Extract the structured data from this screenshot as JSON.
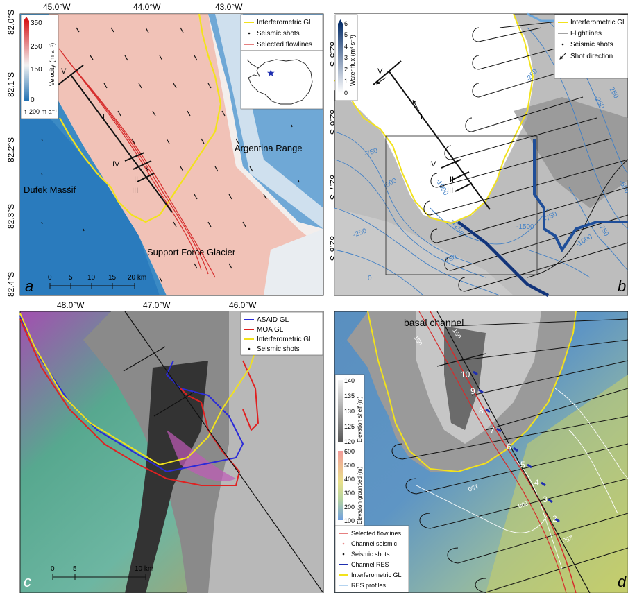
{
  "panel_a": {
    "letter": "a",
    "top_ticks": [
      "45.0°W",
      "44.0°W",
      "43.0°W"
    ],
    "left_ticks": [
      "82.0°S",
      "82.1°S",
      "82.2°S",
      "82.3°S",
      "82.4°S"
    ],
    "right_ticks": [
      "82.5°S",
      "82.6°S",
      "82.7°S",
      "82.8°S"
    ],
    "colorbar": {
      "label": "Velocity (m a⁻¹)",
      "ticks": [
        "350",
        "250",
        "150",
        "0"
      ],
      "arrow_label": "200 m a⁻¹"
    },
    "legend": [
      "Interferometric GL",
      "Seismic shots",
      "Selected flowlines"
    ],
    "places": [
      "Argentina Range",
      "Dufek Massif",
      "Support Force Glacier"
    ],
    "line_labels": [
      "V",
      "I",
      "IV",
      "II",
      "III"
    ],
    "scalebar": {
      "ticks": [
        "0",
        "5",
        "10",
        "15",
        "20 km"
      ]
    },
    "colors": {
      "high": "#e0493a",
      "mid": "#f3efec",
      "low": "#2878b8",
      "gl": "#f2e21c",
      "flowline": "#d62c2c"
    }
  },
  "panel_b": {
    "letter": "b",
    "colorbar": {
      "label": "Water flux (m³ s⁻¹)",
      "ticks": [
        "6",
        "5",
        "4",
        "3",
        "2",
        "1",
        "0"
      ]
    },
    "legend": [
      "Interferometric GL",
      "Flightlines",
      "Seismic shots",
      "Shot direction"
    ],
    "line_labels": [
      "V",
      "I",
      "IV",
      "II",
      "III"
    ],
    "contours": [
      "-750",
      "-500",
      "-250",
      "0",
      "-1000",
      "-1250",
      "-1500",
      "-750",
      "-250",
      "-250",
      "-500",
      "-750",
      "-1000",
      "-750",
      "250",
      "-750",
      "-250",
      "-500",
      "-750"
    ]
  },
  "panel_c": {
    "letter": "c",
    "top_ticks": [
      "48.0°W",
      "47.0°W",
      "46.0°W"
    ],
    "legend": [
      "ASAID GL",
      "MOA GL",
      "Interferometric GL",
      "Seismic shots"
    ],
    "scalebar": {
      "ticks": [
        "0",
        "5",
        "10 km"
      ]
    },
    "colors": {
      "asaid": "#2a2ad8",
      "moa": "#e02020",
      "gl": "#f2e21c"
    }
  },
  "panel_d": {
    "letter": "d",
    "title": "basal channel",
    "colorbar_shelf": {
      "label": "Elevation shelf (m)",
      "ticks": [
        "140",
        "135",
        "130",
        "125",
        "120"
      ]
    },
    "colorbar_grounded": {
      "label": "Elevation grounded (m)",
      "ticks": [
        "600",
        "500",
        "400",
        "300",
        "200",
        "100"
      ]
    },
    "channel_numbers": [
      "10",
      "9",
      "8",
      "7",
      "6",
      "5",
      "4",
      "3",
      "2"
    ],
    "contours": [
      "150",
      "150",
      "150",
      "200",
      "250"
    ],
    "legend": [
      "Selected flowlines",
      "Channel seismic",
      "Seismic shots",
      "Channel RES",
      "Interferometric GL",
      "RES profiles"
    ]
  }
}
